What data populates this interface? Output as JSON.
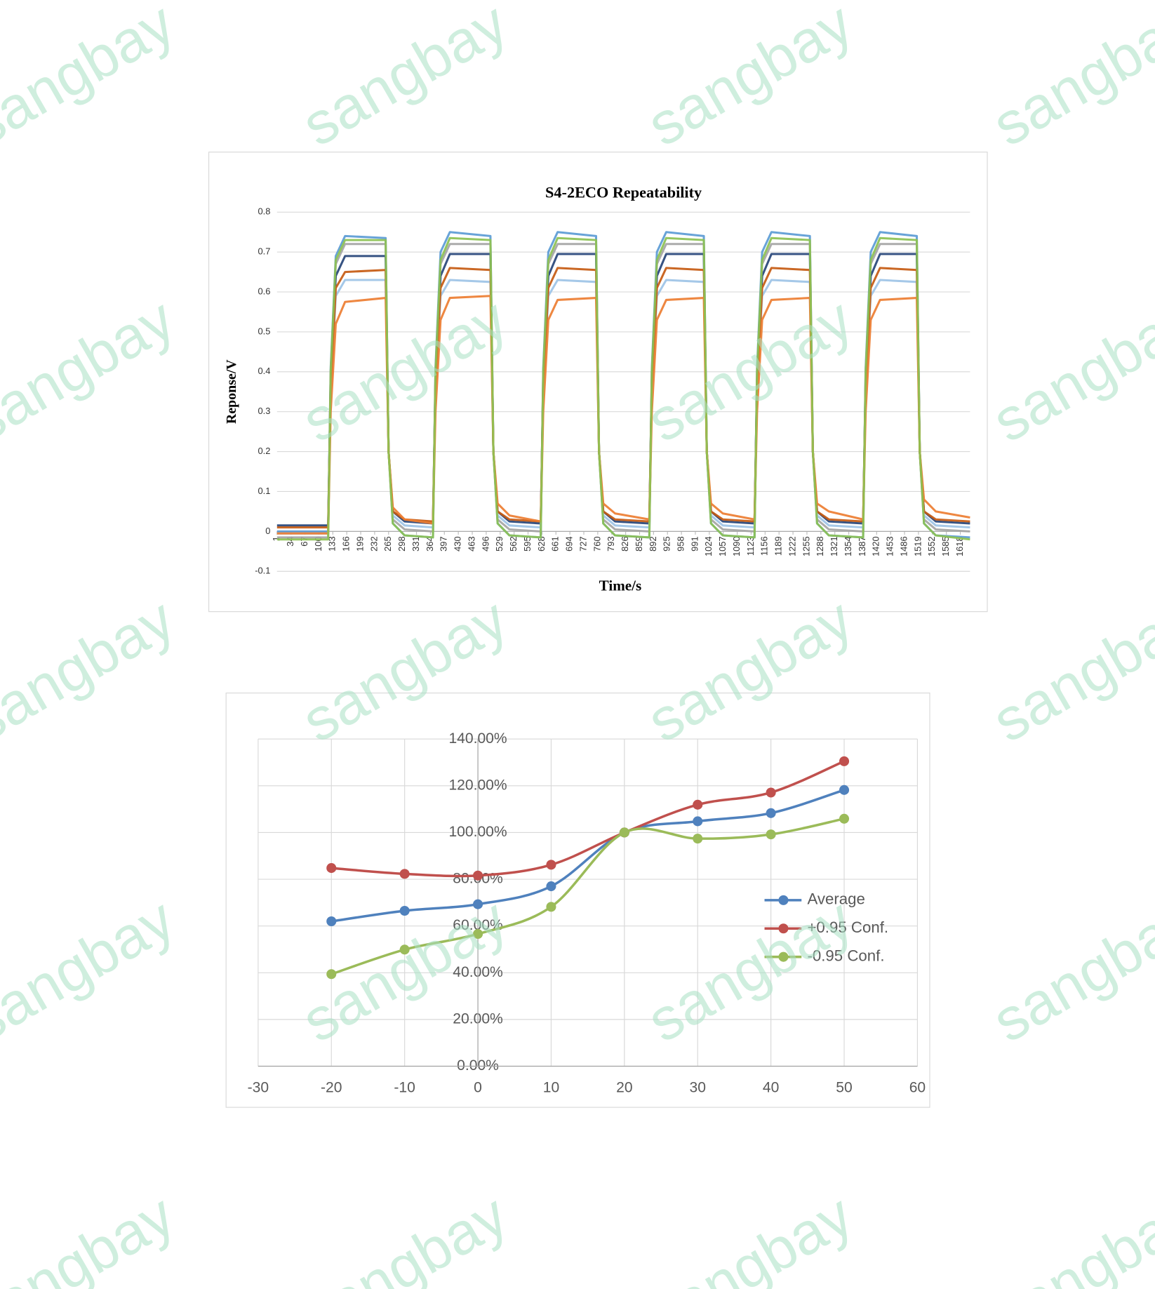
{
  "watermark": "sangbay",
  "chart_data": [
    {
      "type": "line",
      "title": "S4-2ECO Repeatability",
      "x_label": "Time/s",
      "y_label": "Reponse/V",
      "x": [
        1,
        122,
        128,
        140,
        162,
        258,
        265,
        275,
        303,
        370,
        376,
        388,
        410,
        506,
        513,
        523,
        551,
        625,
        631,
        643,
        665,
        756,
        763,
        773,
        801,
        882,
        888,
        900,
        922,
        1011,
        1018,
        1028,
        1056,
        1131,
        1137,
        1149,
        1171,
        1262,
        1269,
        1279,
        1307,
        1388,
        1394,
        1406,
        1428,
        1515,
        1522,
        1532,
        1560,
        1641
      ],
      "xlim": [
        1,
        1641
      ],
      "xticks": [
        1,
        34,
        67,
        100,
        133,
        166,
        199,
        232,
        265,
        298,
        331,
        364,
        397,
        430,
        463,
        496,
        529,
        562,
        595,
        628,
        661,
        694,
        727,
        760,
        793,
        826,
        859,
        892,
        925,
        958,
        991,
        1024,
        1057,
        1090,
        1123,
        1156,
        1189,
        1222,
        1255,
        1288,
        1321,
        1354,
        1387,
        1420,
        1453,
        1486,
        1519,
        1552,
        1585,
        1618
      ],
      "ylim": [
        -0.1,
        0.8
      ],
      "yticks": [
        -0.1,
        0,
        0.1,
        0.2,
        0.3,
        0.4,
        0.5,
        0.6,
        0.7,
        0.8
      ],
      "grid": "y",
      "series": [
        {
          "color": "#5b9bd5",
          "values": [
            0.0,
            0.0,
            0.41,
            0.69,
            0.74,
            0.735,
            0.2,
            0.02,
            -0.01,
            -0.015,
            0.41,
            0.7,
            0.75,
            0.74,
            0.2,
            0.02,
            -0.01,
            -0.015,
            0.41,
            0.7,
            0.75,
            0.74,
            0.2,
            0.02,
            -0.01,
            -0.015,
            0.41,
            0.7,
            0.75,
            0.74,
            0.2,
            0.02,
            -0.01,
            -0.015,
            0.41,
            0.7,
            0.75,
            0.74,
            0.2,
            0.02,
            -0.01,
            -0.015,
            0.41,
            0.7,
            0.75,
            0.74,
            0.2,
            0.02,
            -0.01,
            -0.015
          ]
        },
        {
          "color": "#a5a5a5",
          "values": [
            -0.015,
            -0.015,
            0.4,
            0.67,
            0.72,
            0.72,
            0.2,
            0.03,
            0.005,
            0.0,
            0.4,
            0.67,
            0.72,
            0.72,
            0.2,
            0.03,
            0.005,
            0.0,
            0.4,
            0.67,
            0.72,
            0.72,
            0.2,
            0.03,
            0.005,
            0.0,
            0.4,
            0.67,
            0.72,
            0.72,
            0.2,
            0.03,
            0.005,
            0.0,
            0.4,
            0.67,
            0.72,
            0.72,
            0.2,
            0.03,
            0.005,
            0.0,
            0.4,
            0.67,
            0.72,
            0.72,
            0.2,
            0.03,
            0.005,
            0.0
          ]
        },
        {
          "color": "#264478",
          "values": [
            0.015,
            0.015,
            0.38,
            0.64,
            0.69,
            0.69,
            0.2,
            0.05,
            0.025,
            0.02,
            0.38,
            0.64,
            0.695,
            0.695,
            0.2,
            0.05,
            0.025,
            0.02,
            0.38,
            0.64,
            0.695,
            0.695,
            0.2,
            0.05,
            0.025,
            0.02,
            0.38,
            0.64,
            0.695,
            0.695,
            0.2,
            0.05,
            0.025,
            0.02,
            0.38,
            0.64,
            0.695,
            0.695,
            0.2,
            0.05,
            0.025,
            0.02,
            0.38,
            0.64,
            0.695,
            0.695,
            0.2,
            0.05,
            0.025,
            0.02
          ]
        },
        {
          "color": "#9dc3e6",
          "values": [
            -0.005,
            -0.005,
            0.35,
            0.59,
            0.63,
            0.63,
            0.2,
            0.04,
            0.015,
            0.01,
            0.35,
            0.59,
            0.63,
            0.625,
            0.2,
            0.04,
            0.015,
            0.01,
            0.35,
            0.59,
            0.63,
            0.625,
            0.2,
            0.04,
            0.015,
            0.01,
            0.35,
            0.59,
            0.63,
            0.625,
            0.2,
            0.04,
            0.015,
            0.01,
            0.35,
            0.59,
            0.63,
            0.625,
            0.2,
            0.04,
            0.015,
            0.01,
            0.35,
            0.59,
            0.63,
            0.625,
            0.2,
            0.04,
            0.015,
            0.01
          ]
        },
        {
          "color": "#c55a11",
          "values": [
            0.01,
            0.01,
            0.36,
            0.61,
            0.65,
            0.655,
            0.2,
            0.05,
            0.03,
            0.025,
            0.36,
            0.61,
            0.66,
            0.655,
            0.2,
            0.05,
            0.03,
            0.025,
            0.36,
            0.61,
            0.66,
            0.655,
            0.2,
            0.05,
            0.03,
            0.025,
            0.36,
            0.61,
            0.66,
            0.655,
            0.2,
            0.05,
            0.03,
            0.025,
            0.36,
            0.61,
            0.66,
            0.655,
            0.2,
            0.05,
            0.03,
            0.025,
            0.36,
            0.61,
            0.66,
            0.655,
            0.2,
            0.05,
            0.03,
            0.025
          ]
        },
        {
          "color": "#ed7d31",
          "values": [
            -0.005,
            -0.005,
            0.3,
            0.52,
            0.575,
            0.585,
            0.2,
            0.06,
            0.03,
            0.02,
            0.3,
            0.53,
            0.585,
            0.59,
            0.2,
            0.07,
            0.04,
            0.025,
            0.3,
            0.53,
            0.58,
            0.585,
            0.2,
            0.07,
            0.045,
            0.03,
            0.3,
            0.53,
            0.58,
            0.585,
            0.2,
            0.07,
            0.045,
            0.03,
            0.3,
            0.53,
            0.58,
            0.585,
            0.2,
            0.07,
            0.05,
            0.03,
            0.3,
            0.53,
            0.58,
            0.585,
            0.2,
            0.08,
            0.05,
            0.035
          ]
        },
        {
          "color": "#8cc152",
          "values": [
            -0.02,
            -0.02,
            0.4,
            0.68,
            0.73,
            0.73,
            0.2,
            0.02,
            -0.01,
            -0.015,
            0.4,
            0.68,
            0.735,
            0.73,
            0.2,
            0.02,
            -0.01,
            -0.015,
            0.4,
            0.68,
            0.735,
            0.73,
            0.2,
            0.02,
            -0.01,
            -0.015,
            0.4,
            0.68,
            0.735,
            0.73,
            0.2,
            0.02,
            -0.01,
            -0.015,
            0.4,
            0.68,
            0.735,
            0.73,
            0.2,
            0.02,
            -0.01,
            -0.015,
            0.4,
            0.68,
            0.735,
            0.73,
            0.2,
            0.02,
            -0.01,
            -0.02
          ]
        }
      ]
    },
    {
      "type": "line",
      "smooth": true,
      "markers": true,
      "grid": "both",
      "legend": "right",
      "x": [
        -20,
        -10,
        0,
        10,
        20,
        30,
        40,
        50
      ],
      "xlim": [
        -30,
        60
      ],
      "xticks": [
        -30,
        -20,
        -10,
        0,
        10,
        20,
        30,
        40,
        50,
        60
      ],
      "ylim": [
        0,
        140
      ],
      "yticks": [
        {
          "value": 0,
          "label": "0.00%"
        },
        {
          "value": 20,
          "label": "20.00%"
        },
        {
          "value": 40,
          "label": "40.00%"
        },
        {
          "value": 60,
          "label": "60.00%"
        },
        {
          "value": 80,
          "label": "80.00%"
        },
        {
          "value": 100,
          "label": "100.00%"
        },
        {
          "value": 120,
          "label": "120.00%"
        },
        {
          "value": 140,
          "label": "140.00%"
        }
      ],
      "series": [
        {
          "name": "Average",
          "color": "#4f81bd",
          "values": [
            62,
            66.5,
            69.3,
            77,
            100,
            104.8,
            108.3,
            118.2
          ]
        },
        {
          "name": "+0.95 Conf.",
          "color": "#c0504d",
          "values": [
            84.8,
            82.3,
            81.6,
            86.2,
            100,
            111.9,
            117.1,
            130.5
          ]
        },
        {
          "name": "-0.95 Conf.",
          "color": "#9bbb59",
          "values": [
            39.4,
            49.9,
            56.6,
            68.2,
            100,
            97.4,
            99.2,
            105.9
          ]
        }
      ]
    }
  ]
}
